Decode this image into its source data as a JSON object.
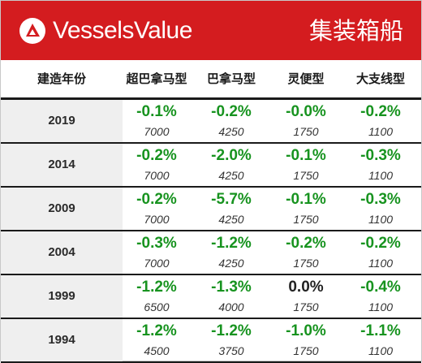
{
  "header": {
    "brand": "VesselsValue",
    "segment": "集装箱船",
    "colors": {
      "banner": "#d41c1f",
      "positive_change": "#17931f",
      "neutral_change": "#222222"
    }
  },
  "columns": {
    "build_year": "建造年份",
    "c1": "超巴拿马型",
    "c2": "巴拿马型",
    "c3": "灵便型",
    "c4": "大支线型"
  },
  "rows": [
    {
      "year": "2019",
      "cells": [
        {
          "pct": "-0.1%",
          "value": "7000"
        },
        {
          "pct": "-0.2%",
          "value": "4250"
        },
        {
          "pct": "-0.0%",
          "value": "1750"
        },
        {
          "pct": "-0.2%",
          "value": "1100"
        }
      ]
    },
    {
      "year": "2014",
      "cells": [
        {
          "pct": "-0.2%",
          "value": "7000"
        },
        {
          "pct": "-2.0%",
          "value": "4250"
        },
        {
          "pct": "-0.1%",
          "value": "1750"
        },
        {
          "pct": "-0.3%",
          "value": "1100"
        }
      ]
    },
    {
      "year": "2009",
      "cells": [
        {
          "pct": "-0.2%",
          "value": "7000"
        },
        {
          "pct": "-5.7%",
          "value": "4250"
        },
        {
          "pct": "-0.1%",
          "value": "1750"
        },
        {
          "pct": "-0.3%",
          "value": "1100"
        }
      ]
    },
    {
      "year": "2004",
      "cells": [
        {
          "pct": "-0.3%",
          "value": "7000"
        },
        {
          "pct": "-1.2%",
          "value": "4250"
        },
        {
          "pct": "-0.2%",
          "value": "1750"
        },
        {
          "pct": "-0.2%",
          "value": "1100"
        }
      ]
    },
    {
      "year": "1999",
      "cells": [
        {
          "pct": "-1.2%",
          "value": "6500"
        },
        {
          "pct": "-1.3%",
          "value": "4000"
        },
        {
          "pct": "0.0%",
          "value": "1750"
        },
        {
          "pct": "-0.4%",
          "value": "1100"
        }
      ]
    },
    {
      "year": "1994",
      "cells": [
        {
          "pct": "-1.2%",
          "value": "4500"
        },
        {
          "pct": "-1.2%",
          "value": "3750"
        },
        {
          "pct": "-1.0%",
          "value": "1750"
        },
        {
          "pct": "-1.1%",
          "value": "1100"
        }
      ]
    }
  ]
}
